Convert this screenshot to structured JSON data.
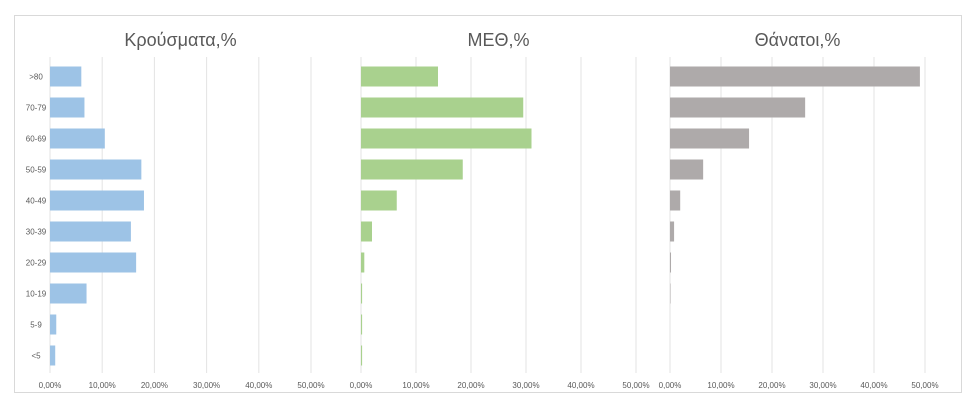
{
  "chart_data": {
    "type": "bar",
    "orientation": "horizontal",
    "categories": [
      ">80",
      "70-79",
      "60-69",
      "50-59",
      "40-49",
      "30-39",
      "20-29",
      "10-19",
      "5-9",
      "<5"
    ],
    "grid": true,
    "legend": "none",
    "panels": [
      {
        "title": "Κρούσματα,%",
        "color": "#9dc3e6",
        "xlim": [
          0,
          50
        ],
        "ticks": [
          "0,00%",
          "10,00%",
          "20,00%",
          "30,00%",
          "40,00%",
          "50,00%"
        ],
        "values": [
          6.0,
          6.6,
          10.5,
          17.5,
          18.0,
          15.5,
          16.5,
          7.0,
          1.2,
          1.0
        ]
      },
      {
        "title": "ΜΕΘ,%",
        "color": "#a9d18e",
        "xlim": [
          0,
          50
        ],
        "ticks": [
          "0,00%",
          "10,00%",
          "20,00%",
          "30,00%",
          "40,00%",
          "50,00%"
        ],
        "values": [
          14.0,
          29.5,
          31.0,
          18.5,
          6.5,
          2.0,
          0.6,
          0.2,
          0.2,
          0.2
        ]
      },
      {
        "title": "Θάνατοι,%",
        "color": "#aeaaaa",
        "xlim": [
          0,
          50
        ],
        "ticks": [
          "0,00%",
          "10,00%",
          "20,00%",
          "30,00%",
          "40,00%",
          "50,00%"
        ],
        "values": [
          49.0,
          26.5,
          15.5,
          6.5,
          2.0,
          0.8,
          0.2,
          0.1,
          0.0,
          0.0
        ]
      }
    ]
  }
}
